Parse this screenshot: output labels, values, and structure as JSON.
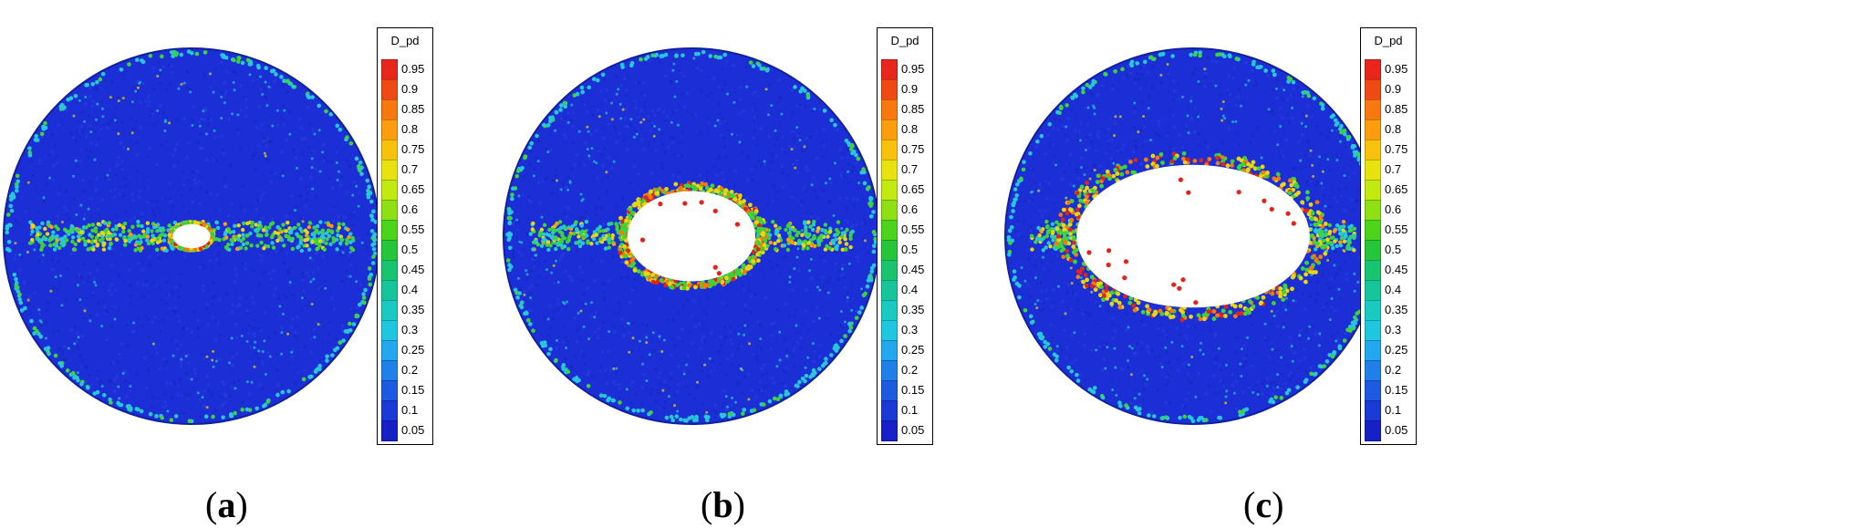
{
  "legend": {
    "title": "D_pd",
    "ticks": [
      "0.95",
      "0.9",
      "0.85",
      "0.8",
      "0.75",
      "0.7",
      "0.65",
      "0.6",
      "0.55",
      "0.5",
      "0.45",
      "0.4",
      "0.35",
      "0.3",
      "0.25",
      "0.2",
      "0.15",
      "0.1",
      "0.05"
    ],
    "colors": [
      "#e8261c",
      "#f04a14",
      "#f7780e",
      "#fb9d0c",
      "#f8c20c",
      "#e8e20e",
      "#c2ea10",
      "#8ee013",
      "#4cd41a",
      "#26c63a",
      "#18c46e",
      "#16c69a",
      "#18cac0",
      "#1ec6e0",
      "#22a8ee",
      "#1f80ea",
      "#1c5ae2",
      "#1a3ad8",
      "#1620c6"
    ]
  },
  "panels": [
    {
      "id": "a",
      "caption_open": "(",
      "caption_letter": "a",
      "caption_close": ")",
      "hole_rx": 0.05,
      "hole_ry": 0.032
    },
    {
      "id": "b",
      "caption_open": "(",
      "caption_letter": "b",
      "caption_close": ")",
      "hole_rx": 0.17,
      "hole_ry": 0.12
    },
    {
      "id": "c",
      "caption_open": "(",
      "caption_letter": "c",
      "caption_close": ")",
      "hole_rx": 0.31,
      "hole_ry": 0.19
    }
  ],
  "colors": {
    "background_blue": "#1c2fd6",
    "rim_cyan": "#27c7d9",
    "band_green": "#3fd23a",
    "edge_yellow": "#e9d60f",
    "damage_red": "#e0241c"
  }
}
